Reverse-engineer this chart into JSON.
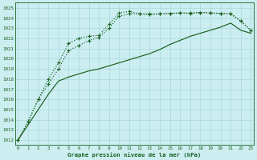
{
  "xlabel": "Graphe pression niveau de la mer (hPa)",
  "ylim": [
    1011.5,
    1025.5
  ],
  "xlim": [
    -0.3,
    23.3
  ],
  "bg_color": "#cceef0",
  "grid_color": "#aad8dc",
  "line_color": "#1a6020",
  "xticks": [
    0,
    1,
    2,
    3,
    4,
    5,
    6,
    7,
    8,
    9,
    10,
    11,
    12,
    13,
    14,
    15,
    16,
    17,
    18,
    19,
    20,
    21,
    22,
    23
  ],
  "yticks": [
    1012,
    1013,
    1014,
    1015,
    1016,
    1017,
    1018,
    1019,
    1020,
    1021,
    1022,
    1023,
    1024,
    1025
  ],
  "series1": [
    1012.0,
    1013.5,
    1015.0,
    1016.5,
    1017.8,
    1018.2,
    1018.5,
    1018.8,
    1019.0,
    1019.3,
    1019.6,
    1019.9,
    1020.2,
    1020.5,
    1020.9,
    1021.4,
    1021.8,
    1022.2,
    1022.5,
    1022.8,
    1023.1,
    1023.5,
    1022.8,
    1022.5
  ],
  "series2": [
    1012.0,
    1013.8,
    1016.0,
    1017.5,
    1019.0,
    1020.8,
    1021.3,
    1021.8,
    1022.1,
    1023.0,
    1024.2,
    1024.4,
    1024.4,
    1024.35,
    1024.4,
    1024.45,
    1024.5,
    1024.45,
    1024.55,
    1024.5,
    1024.45,
    1024.45,
    1023.7,
    1022.8
  ],
  "series3": [
    1012.0,
    1013.8,
    1016.0,
    1018.0,
    1019.6,
    1021.5,
    1022.0,
    1022.2,
    1022.3,
    1023.4,
    1024.5,
    1024.65,
    1024.4,
    1024.4,
    1024.4,
    1024.45,
    1024.5,
    1024.5,
    1024.55,
    1024.5,
    1024.45,
    1024.4,
    1023.7,
    1022.8
  ]
}
